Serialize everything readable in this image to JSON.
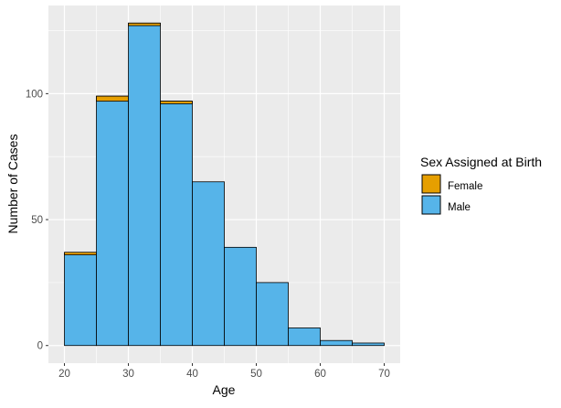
{
  "chart_data": {
    "type": "bar",
    "stacked": true,
    "histogram": true,
    "xlabel": "Age",
    "ylabel": "Number of Cases",
    "xlim": [
      17.5,
      72.5
    ],
    "ylim": [
      -7,
      135
    ],
    "x_ticks": [
      20,
      30,
      40,
      50,
      60,
      70
    ],
    "y_ticks": [
      0,
      50,
      100
    ],
    "bins": [
      {
        "start": 20,
        "end": 25,
        "male": 36,
        "female": 1
      },
      {
        "start": 25,
        "end": 30,
        "male": 97,
        "female": 2
      },
      {
        "start": 30,
        "end": 35,
        "male": 127,
        "female": 1
      },
      {
        "start": 35,
        "end": 40,
        "male": 96,
        "female": 1
      },
      {
        "start": 40,
        "end": 45,
        "male": 65,
        "female": 0
      },
      {
        "start": 45,
        "end": 50,
        "male": 39,
        "female": 0
      },
      {
        "start": 50,
        "end": 55,
        "male": 25,
        "female": 0
      },
      {
        "start": 55,
        "end": 60,
        "male": 7,
        "female": 0
      },
      {
        "start": 60,
        "end": 65,
        "male": 2,
        "female": 0
      },
      {
        "start": 65,
        "end": 70,
        "male": 1,
        "female": 0
      }
    ],
    "series": [
      {
        "name": "Female",
        "color": "#E69F00"
      },
      {
        "name": "Male",
        "color": "#56B4E9"
      }
    ],
    "legend": {
      "title": "Sex Assigned at Birth",
      "placement": "right",
      "items": [
        "Female",
        "Male"
      ]
    },
    "grid": true,
    "panel_background": "#EBEBEB",
    "grid_color": "#FFFFFF",
    "bar_outline": "#000000"
  }
}
